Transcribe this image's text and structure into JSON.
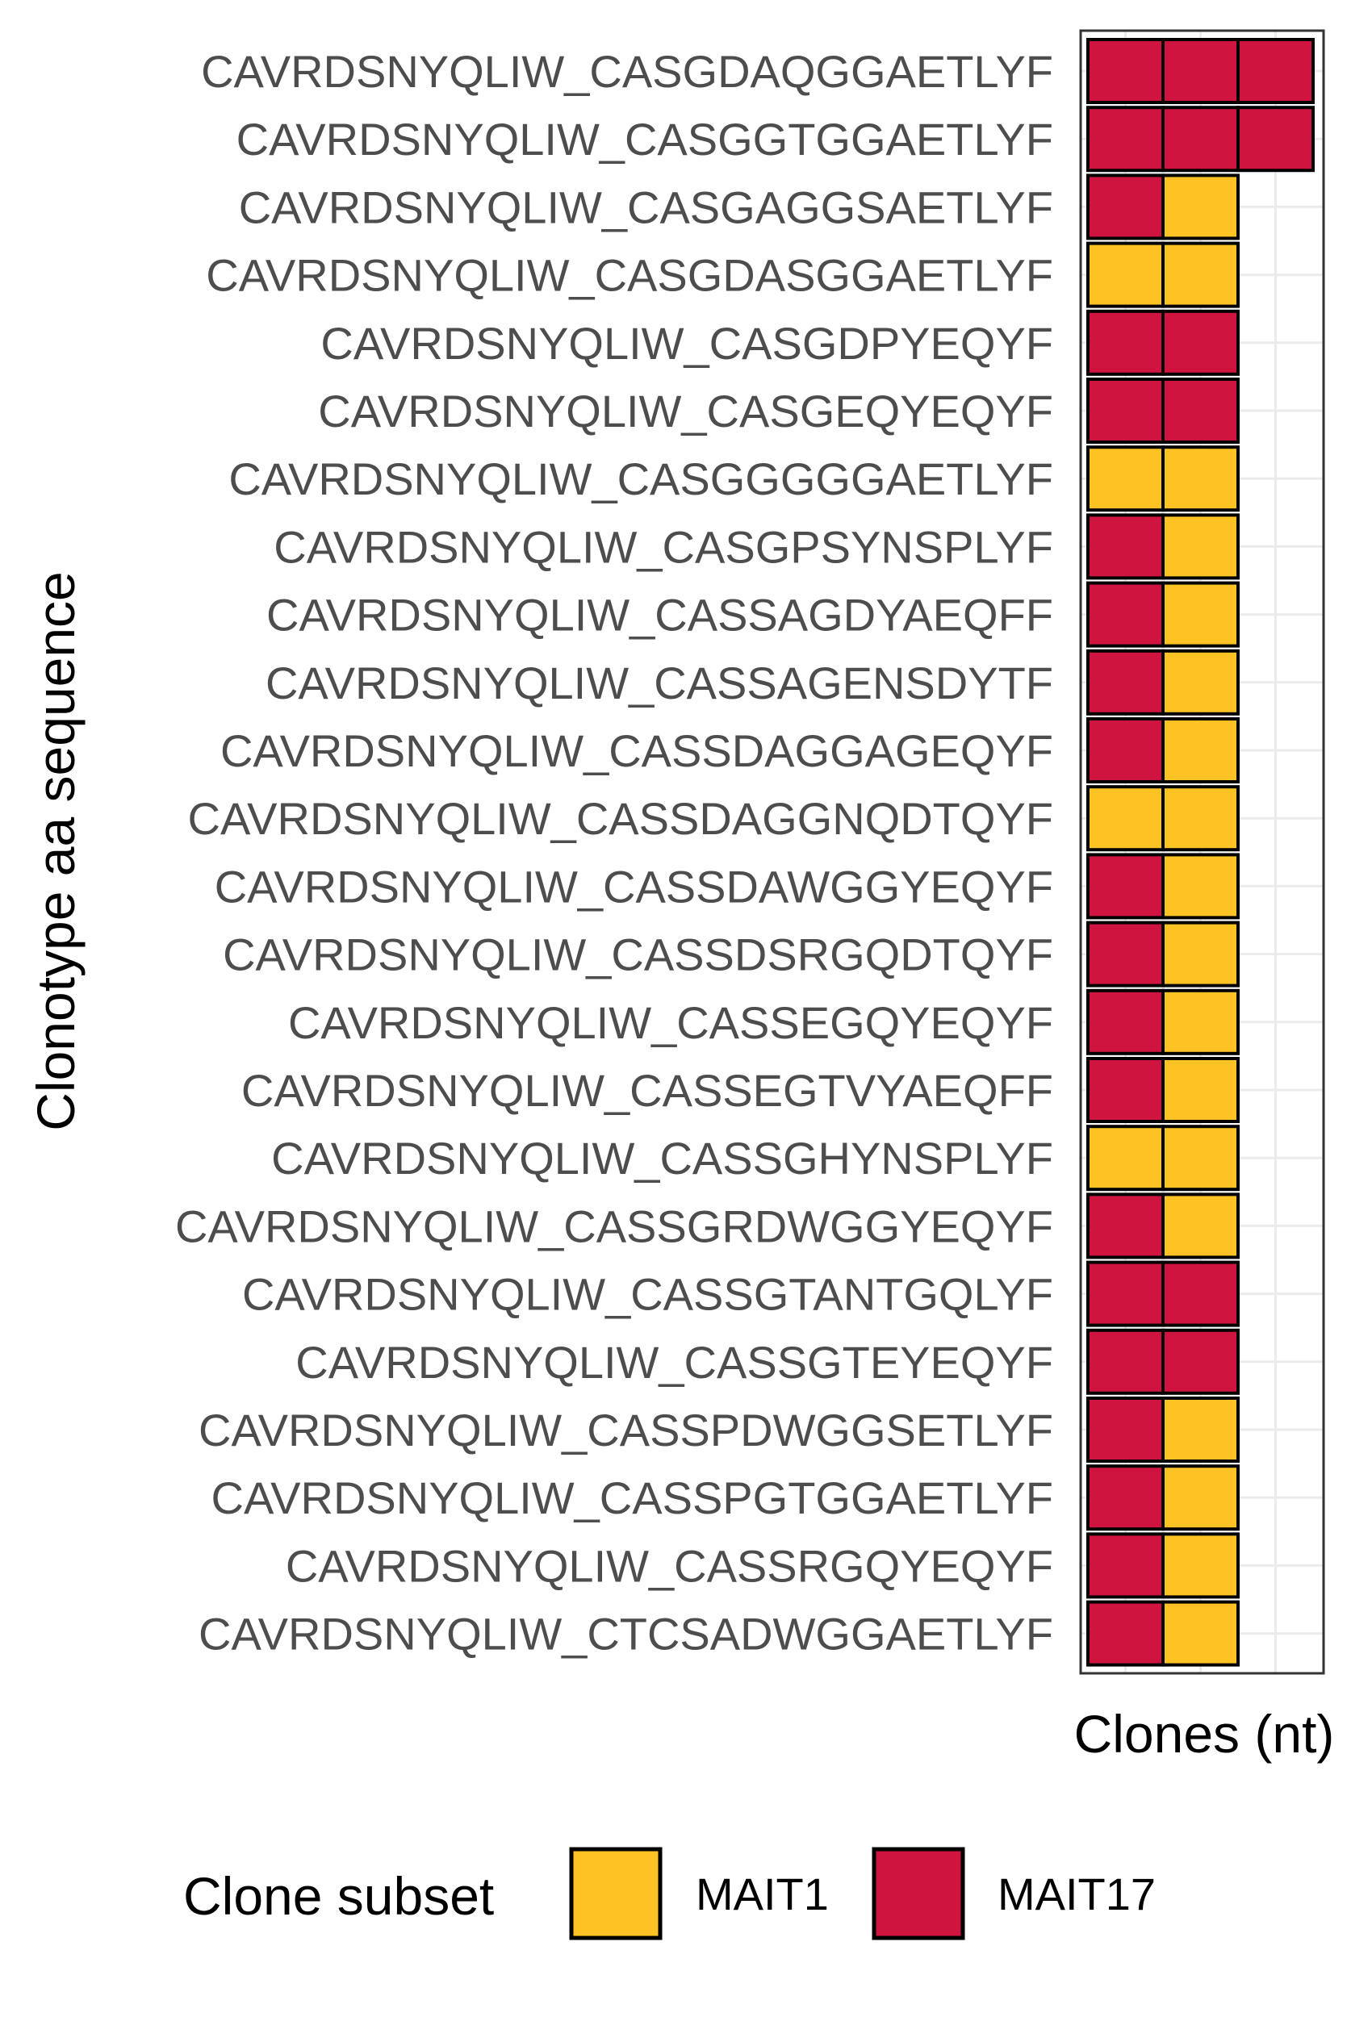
{
  "chart_data": {
    "type": "tile",
    "ylabel": "Clonotype aa sequence",
    "xlabel": "Clones (nt)",
    "legend": {
      "title": "Clone subset",
      "position": "bottom",
      "entries": [
        {
          "name": "MAIT1",
          "color": "#FDC325"
        },
        {
          "name": "MAIT17",
          "color": "#D01440"
        }
      ]
    },
    "grid": true,
    "x_max": 3,
    "rows": [
      {
        "label": "CAVRDSNYQLIW_CASGDAQGGAETLYF",
        "clones": [
          "MAIT17",
          "MAIT17",
          "MAIT17"
        ]
      },
      {
        "label": "CAVRDSNYQLIW_CASGGTGGAETLYF",
        "clones": [
          "MAIT17",
          "MAIT17",
          "MAIT17"
        ]
      },
      {
        "label": "CAVRDSNYQLIW_CASGAGGSAETLYF",
        "clones": [
          "MAIT17",
          "MAIT1"
        ]
      },
      {
        "label": "CAVRDSNYQLIW_CASGDASGGAETLYF",
        "clones": [
          "MAIT1",
          "MAIT1"
        ]
      },
      {
        "label": "CAVRDSNYQLIW_CASGDPYEQYF",
        "clones": [
          "MAIT17",
          "MAIT17"
        ]
      },
      {
        "label": "CAVRDSNYQLIW_CASGEQYEQYF",
        "clones": [
          "MAIT17",
          "MAIT17"
        ]
      },
      {
        "label": "CAVRDSNYQLIW_CASGGGGGAETLYF",
        "clones": [
          "MAIT1",
          "MAIT1"
        ]
      },
      {
        "label": "CAVRDSNYQLIW_CASGPSYNSPLYF",
        "clones": [
          "MAIT17",
          "MAIT1"
        ]
      },
      {
        "label": "CAVRDSNYQLIW_CASSAGDYAEQFF",
        "clones": [
          "MAIT17",
          "MAIT1"
        ]
      },
      {
        "label": "CAVRDSNYQLIW_CASSAGENSDYTF",
        "clones": [
          "MAIT17",
          "MAIT1"
        ]
      },
      {
        "label": "CAVRDSNYQLIW_CASSDAGGAGEQYF",
        "clones": [
          "MAIT17",
          "MAIT1"
        ]
      },
      {
        "label": "CAVRDSNYQLIW_CASSDAGGNQDTQYF",
        "clones": [
          "MAIT1",
          "MAIT1"
        ]
      },
      {
        "label": "CAVRDSNYQLIW_CASSDAWGGYEQYF",
        "clones": [
          "MAIT17",
          "MAIT1"
        ]
      },
      {
        "label": "CAVRDSNYQLIW_CASSDSRGQDTQYF",
        "clones": [
          "MAIT17",
          "MAIT1"
        ]
      },
      {
        "label": "CAVRDSNYQLIW_CASSEGQYEQYF",
        "clones": [
          "MAIT17",
          "MAIT1"
        ]
      },
      {
        "label": "CAVRDSNYQLIW_CASSEGTVYAEQFF",
        "clones": [
          "MAIT17",
          "MAIT1"
        ]
      },
      {
        "label": "CAVRDSNYQLIW_CASSGHYNSPLYF",
        "clones": [
          "MAIT1",
          "MAIT1"
        ]
      },
      {
        "label": "CAVRDSNYQLIW_CASSGRDWGGYEQYF",
        "clones": [
          "MAIT17",
          "MAIT1"
        ]
      },
      {
        "label": "CAVRDSNYQLIW_CASSGTANTGQLYF",
        "clones": [
          "MAIT17",
          "MAIT17"
        ]
      },
      {
        "label": "CAVRDSNYQLIW_CASSGTEYEQYF",
        "clones": [
          "MAIT17",
          "MAIT17"
        ]
      },
      {
        "label": "CAVRDSNYQLIW_CASSPDWGGSETLYF",
        "clones": [
          "MAIT17",
          "MAIT1"
        ]
      },
      {
        "label": "CAVRDSNYQLIW_CASSPGTGGAETLYF",
        "clones": [
          "MAIT17",
          "MAIT1"
        ]
      },
      {
        "label": "CAVRDSNYQLIW_CASSRGQYEQYF",
        "clones": [
          "MAIT17",
          "MAIT1"
        ]
      },
      {
        "label": "CAVRDSNYQLIW_CTCSADWGGAETLYF",
        "clones": [
          "MAIT17",
          "MAIT1"
        ]
      }
    ]
  }
}
